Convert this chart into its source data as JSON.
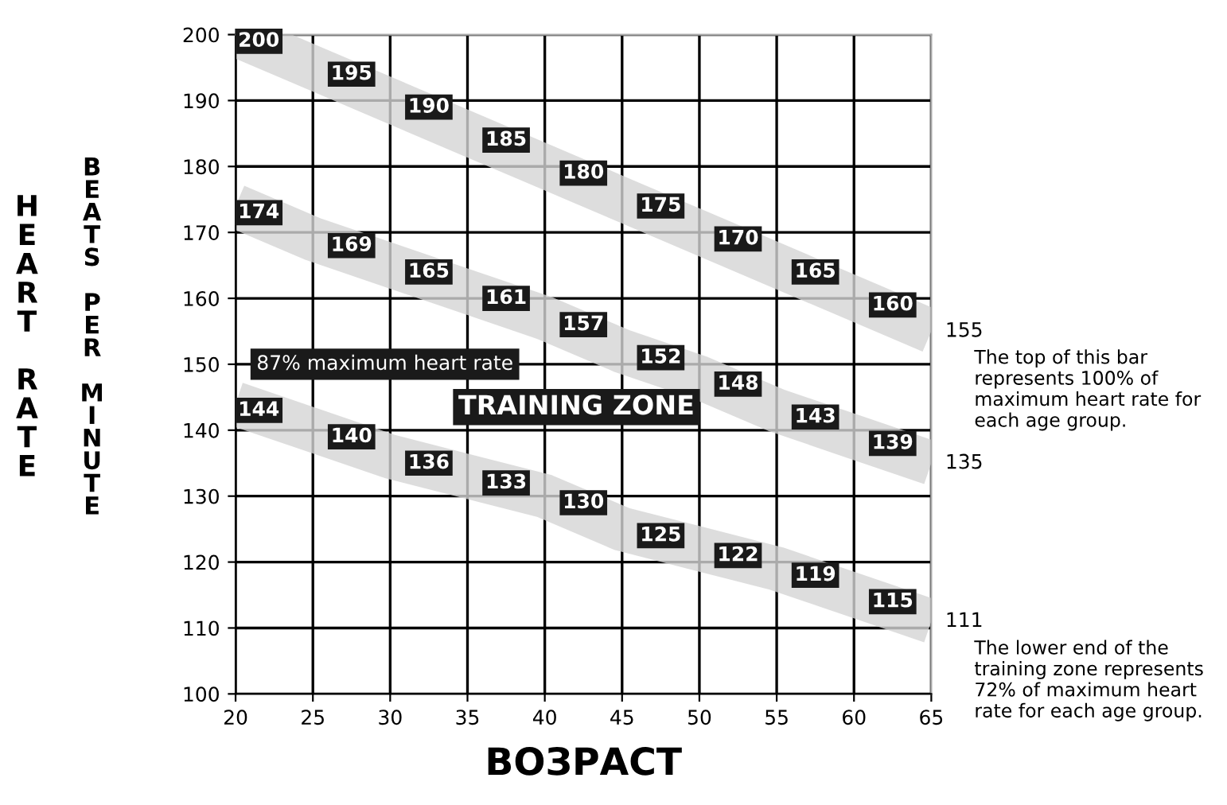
{
  "chart_data": {
    "type": "line",
    "title": "HEART RATE",
    "ylabel": "BEATS PER MINUTE",
    "xlabel": "ВОЗРАСТ",
    "x": [
      20,
      25,
      30,
      35,
      40,
      45,
      50,
      55,
      60,
      65
    ],
    "series": [
      {
        "color": "#d4d4d4",
        "values": [
          200,
          195,
          190,
          185,
          180,
          175,
          170,
          165,
          160,
          155
        ]
      },
      {
        "color": "#d4d4d4",
        "values": [
          174,
          169,
          165,
          161,
          157,
          152,
          148,
          143,
          139,
          135
        ]
      },
      {
        "color": "#d4d4d4",
        "values": [
          144,
          140,
          136,
          133,
          130,
          125,
          122,
          119,
          115,
          111
        ]
      }
    ],
    "data_labels": true,
    "xlim": [
      20,
      65
    ],
    "xticks": [
      20,
      25,
      30,
      35,
      40,
      45,
      50,
      55,
      60,
      65
    ],
    "ylim": [
      100,
      200
    ],
    "yticks": [
      100,
      110,
      120,
      130,
      140,
      150,
      160,
      170,
      180,
      190,
      200
    ],
    "grid": true,
    "annotations": [
      "87% maximum heart rate",
      "TRAINING ZONE",
      "The top of this bar represents 100% of maximum heart rate for each age group.",
      "The lower end of the training zone represents 72% of maximum heart rate for each age group."
    ]
  }
}
